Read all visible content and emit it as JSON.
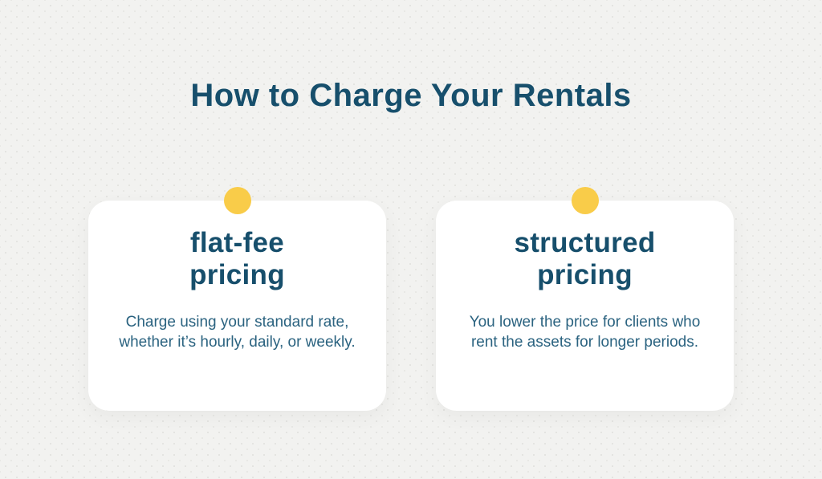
{
  "page": {
    "title": "How to Charge Your Rentals"
  },
  "colors": {
    "background": "#F2F2F0",
    "card_background": "#FFFFFF",
    "heading_text": "#174F6C",
    "body_text": "#2B6380",
    "accent_dot": "#F9CC49"
  },
  "cards": [
    {
      "heading": "flat-fee pricing",
      "heading_lines": [
        "flat-fee",
        "pricing"
      ],
      "body": "Charge using your standard rate, whether it’s hourly, daily, or weekly."
    },
    {
      "heading": "structured pricing",
      "heading_lines": [
        "structured",
        "pricing"
      ],
      "body": "You lower the price for clients who rent the assets for longer periods."
    }
  ]
}
